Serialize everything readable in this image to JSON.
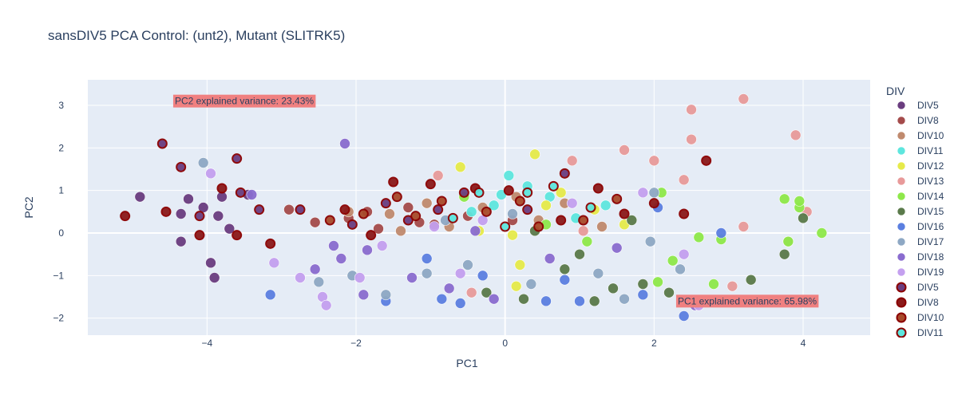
{
  "chart_data": {
    "type": "scatter",
    "title": "sansDIV5 PCA Control: (unt2), Mutant (SLITRK5)",
    "xlabel": "PC1",
    "ylabel": "PC2",
    "xlim": [
      -5.6,
      4.9
    ],
    "ylim": [
      -2.4,
      3.6
    ],
    "xticks": [
      -4,
      -2,
      0,
      2,
      4
    ],
    "yticks": [
      -2,
      -1,
      0,
      1,
      2,
      3
    ],
    "grid": true,
    "legend_title": "DIV",
    "legend_position": "right",
    "annotations": [
      {
        "text": "PC2 explained variance: 23.43%",
        "x": -3.5,
        "y": 3.1
      },
      {
        "text": "PC1 explained variance: 65.98%",
        "x": 3.25,
        "y": -1.6
      }
    ],
    "series": [
      {
        "name": "DIV5",
        "group": "control",
        "color": "#6a3d7f",
        "points": [
          [
            -4.9,
            0.85
          ],
          [
            -4.35,
            -0.2
          ],
          [
            -4.25,
            0.8
          ],
          [
            -3.95,
            -0.7
          ],
          [
            -3.9,
            -1.05
          ],
          [
            -4.05,
            0.6
          ],
          [
            -3.7,
            0.1
          ],
          [
            -3.45,
            0.9
          ],
          [
            -3.8,
            0.85
          ],
          [
            -4.35,
            0.45
          ],
          [
            -3.85,
            0.4
          ]
        ]
      },
      {
        "name": "DIV8",
        "group": "control",
        "color": "#a44b4b",
        "points": [
          [
            -2.9,
            0.55
          ],
          [
            -2.55,
            0.25
          ],
          [
            -2.1,
            0.35
          ],
          [
            -1.85,
            0.5
          ],
          [
            -1.3,
            0.6
          ],
          [
            -0.95,
            0.2
          ],
          [
            -0.5,
            0.4
          ],
          [
            0.1,
            0.3
          ],
          [
            -1.7,
            0.1
          ],
          [
            -1.15,
            0.25
          ]
        ]
      },
      {
        "name": "DIV10",
        "group": "control",
        "color": "#c08a6e",
        "points": [
          [
            -1.55,
            0.45
          ],
          [
            -1.05,
            0.7
          ],
          [
            -0.75,
            0.15
          ],
          [
            -0.3,
            0.6
          ],
          [
            0.45,
            0.3
          ],
          [
            0.8,
            0.7
          ],
          [
            -2.1,
            0.5
          ],
          [
            1.3,
            0.15
          ],
          [
            -1.4,
            0.05
          ],
          [
            0.15,
            0.85
          ]
        ]
      },
      {
        "name": "DIV11",
        "group": "control",
        "color": "#5ee6de",
        "points": [
          [
            -0.05,
            0.9
          ],
          [
            0.05,
            1.35
          ],
          [
            0.3,
            1.1
          ],
          [
            1.35,
            0.65
          ],
          [
            -0.45,
            0.5
          ],
          [
            0.6,
            0.85
          ],
          [
            0.95,
            0.35
          ],
          [
            -0.15,
            0.65
          ]
        ]
      },
      {
        "name": "DIV12",
        "group": "control",
        "color": "#e6ea4a",
        "points": [
          [
            0.4,
            1.85
          ],
          [
            0.75,
            0.95
          ],
          [
            0.1,
            -0.05
          ],
          [
            -0.6,
            1.55
          ],
          [
            1.6,
            0.2
          ],
          [
            0.2,
            -0.75
          ],
          [
            -0.35,
            0.05
          ],
          [
            0.55,
            0.65
          ],
          [
            0.15,
            -1.25
          ],
          [
            1.2,
            0.55
          ]
        ]
      },
      {
        "name": "DIV13",
        "group": "control",
        "color": "#e89a9a",
        "points": [
          [
            3.2,
            3.15
          ],
          [
            2.5,
            2.9
          ],
          [
            3.9,
            2.3
          ],
          [
            2.5,
            2.2
          ],
          [
            1.6,
            1.95
          ],
          [
            2.0,
            1.7
          ],
          [
            2.4,
            1.25
          ],
          [
            4.05,
            0.5
          ],
          [
            3.2,
            0.15
          ],
          [
            3.05,
            -1.25
          ],
          [
            3.8,
            -0.2
          ],
          [
            -0.9,
            1.35
          ],
          [
            -0.45,
            -1.4
          ],
          [
            1.05,
            0.05
          ],
          [
            0.9,
            1.7
          ]
        ]
      },
      {
        "name": "DIV14",
        "group": "control",
        "color": "#8ee84a",
        "points": [
          [
            4.25,
            0.0
          ],
          [
            3.95,
            0.6
          ],
          [
            3.75,
            0.8
          ],
          [
            3.95,
            0.75
          ],
          [
            2.1,
            0.95
          ],
          [
            2.6,
            -0.1
          ],
          [
            2.9,
            -0.15
          ],
          [
            3.8,
            -0.2
          ],
          [
            2.8,
            -1.2
          ],
          [
            2.05,
            -1.15
          ],
          [
            1.1,
            -0.2
          ],
          [
            0.55,
            0.2
          ],
          [
            2.25,
            -0.65
          ],
          [
            -0.55,
            0.85
          ]
        ]
      },
      {
        "name": "DIV15",
        "group": "control",
        "color": "#5a7a4a",
        "points": [
          [
            4.0,
            0.35
          ],
          [
            3.3,
            -1.1
          ],
          [
            3.75,
            -0.5
          ],
          [
            1.7,
            0.3
          ],
          [
            1.45,
            -1.3
          ],
          [
            0.25,
            -1.55
          ],
          [
            -0.25,
            -1.4
          ],
          [
            1.0,
            -0.5
          ],
          [
            0.8,
            -0.85
          ],
          [
            1.2,
            -1.6
          ],
          [
            2.2,
            -1.4
          ],
          [
            0.4,
            0.05
          ],
          [
            1.85,
            -1.2
          ]
        ]
      },
      {
        "name": "DIV16",
        "group": "control",
        "color": "#5b7fe0",
        "points": [
          [
            -3.15,
            -1.45
          ],
          [
            -1.05,
            -0.6
          ],
          [
            -0.3,
            -1.0
          ],
          [
            -0.6,
            -1.65
          ],
          [
            0.55,
            -1.6
          ],
          [
            1.0,
            -1.6
          ],
          [
            2.4,
            -1.95
          ],
          [
            2.9,
            0.0
          ],
          [
            -1.6,
            -1.6
          ],
          [
            0.8,
            -1.1
          ],
          [
            2.05,
            0.6
          ],
          [
            -0.85,
            -1.55
          ],
          [
            1.85,
            -1.45
          ]
        ]
      },
      {
        "name": "DIV17",
        "group": "control",
        "color": "#8ea8c4",
        "points": [
          [
            -4.05,
            1.65
          ],
          [
            -2.5,
            -1.15
          ],
          [
            -2.05,
            -1.0
          ],
          [
            -1.6,
            -1.45
          ],
          [
            -1.05,
            -0.95
          ],
          [
            -0.5,
            -0.75
          ],
          [
            0.35,
            -1.2
          ],
          [
            1.25,
            -0.95
          ],
          [
            1.6,
            -1.55
          ],
          [
            2.0,
            0.95
          ],
          [
            2.35,
            -0.85
          ],
          [
            0.1,
            0.45
          ],
          [
            1.95,
            -0.2
          ],
          [
            -0.8,
            0.3
          ]
        ]
      },
      {
        "name": "DIV18",
        "group": "control",
        "color": "#8a6ccf",
        "points": [
          [
            -2.15,
            2.1
          ],
          [
            -3.4,
            0.9
          ],
          [
            -2.3,
            -0.3
          ],
          [
            -2.2,
            -0.6
          ],
          [
            -2.55,
            -0.85
          ],
          [
            -1.85,
            -0.4
          ],
          [
            -1.25,
            -1.05
          ],
          [
            -0.75,
            -1.3
          ],
          [
            -0.4,
            0.05
          ],
          [
            0.6,
            -0.6
          ],
          [
            1.5,
            -0.35
          ],
          [
            2.55,
            -1.7
          ],
          [
            -1.9,
            -1.45
          ],
          [
            -0.15,
            -1.55
          ]
        ]
      },
      {
        "name": "DIV19",
        "group": "control",
        "color": "#c4a0ef",
        "points": [
          [
            -3.95,
            1.4
          ],
          [
            -3.1,
            -0.7
          ],
          [
            -2.75,
            -1.05
          ],
          [
            -2.45,
            -1.5
          ],
          [
            -2.4,
            -1.7
          ],
          [
            -1.95,
            -1.05
          ],
          [
            -1.65,
            -0.3
          ],
          [
            -0.95,
            0.15
          ],
          [
            -0.6,
            -0.95
          ],
          [
            0.9,
            0.7
          ],
          [
            1.85,
            0.95
          ],
          [
            2.4,
            -0.5
          ],
          [
            2.6,
            -1.7
          ],
          [
            -0.3,
            0.3
          ]
        ]
      },
      {
        "name": "DIV5",
        "group": "mutant",
        "color": "#6a3d7f",
        "points": [
          [
            -4.6,
            2.1
          ],
          [
            -4.35,
            1.55
          ],
          [
            -4.1,
            0.4
          ],
          [
            -3.6,
            1.75
          ],
          [
            -3.55,
            0.95
          ],
          [
            -3.3,
            0.55
          ],
          [
            -2.75,
            0.55
          ],
          [
            -1.6,
            0.7
          ],
          [
            -0.9,
            0.55
          ],
          [
            -0.55,
            0.95
          ],
          [
            0.3,
            0.55
          ],
          [
            0.8,
            1.4
          ],
          [
            -2.05,
            0.2
          ],
          [
            -1.3,
            0.3
          ]
        ]
      },
      {
        "name": "DIV8",
        "group": "mutant",
        "color": "#8b1a1a",
        "points": [
          [
            -5.1,
            0.4
          ],
          [
            -4.55,
            0.5
          ],
          [
            -4.1,
            -0.05
          ],
          [
            -3.8,
            1.05
          ],
          [
            -3.6,
            -0.05
          ],
          [
            -3.15,
            -0.25
          ],
          [
            -1.5,
            1.2
          ],
          [
            -1.0,
            1.15
          ],
          [
            -0.4,
            1.05
          ],
          [
            0.05,
            1.0
          ],
          [
            0.75,
            0.3
          ],
          [
            1.25,
            1.05
          ],
          [
            2.0,
            0.7
          ],
          [
            2.7,
            1.7
          ],
          [
            2.4,
            0.45
          ],
          [
            -2.15,
            0.55
          ],
          [
            -1.8,
            -0.05
          ],
          [
            1.6,
            0.45
          ]
        ]
      },
      {
        "name": "DIV10",
        "group": "mutant",
        "color": "#a84a2a",
        "points": [
          [
            -2.35,
            0.3
          ],
          [
            -1.9,
            0.45
          ],
          [
            -1.45,
            0.85
          ],
          [
            -0.85,
            0.75
          ],
          [
            -0.25,
            0.5
          ],
          [
            0.45,
            0.15
          ],
          [
            1.05,
            0.3
          ],
          [
            1.5,
            0.8
          ],
          [
            -1.2,
            0.4
          ],
          [
            0.2,
            0.75
          ]
        ]
      },
      {
        "name": "DIV11",
        "group": "mutant",
        "color": "#5ee6de",
        "points": [
          [
            -0.35,
            0.95
          ],
          [
            0.3,
            0.95
          ],
          [
            0.65,
            1.1
          ],
          [
            1.15,
            0.6
          ],
          [
            -0.7,
            0.35
          ],
          [
            0.0,
            0.15
          ]
        ]
      }
    ],
    "legend_items": [
      {
        "name": "DIV5",
        "group": "control"
      },
      {
        "name": "DIV8",
        "group": "control"
      },
      {
        "name": "DIV10",
        "group": "control"
      },
      {
        "name": "DIV11",
        "group": "control"
      },
      {
        "name": "DIV12",
        "group": "control"
      },
      {
        "name": "DIV13",
        "group": "control"
      },
      {
        "name": "DIV14",
        "group": "control"
      },
      {
        "name": "DIV15",
        "group": "control"
      },
      {
        "name": "DIV16",
        "group": "control"
      },
      {
        "name": "DIV17",
        "group": "control"
      },
      {
        "name": "DIV18",
        "group": "control"
      },
      {
        "name": "DIV19",
        "group": "control"
      },
      {
        "name": "DIV5",
        "group": "mutant"
      },
      {
        "name": "DIV8",
        "group": "mutant"
      },
      {
        "name": "DIV10",
        "group": "mutant"
      },
      {
        "name": "DIV11",
        "group": "mutant"
      }
    ],
    "mutant_outline_color": "#8b0000",
    "control_outline_color": "#ffffff"
  }
}
